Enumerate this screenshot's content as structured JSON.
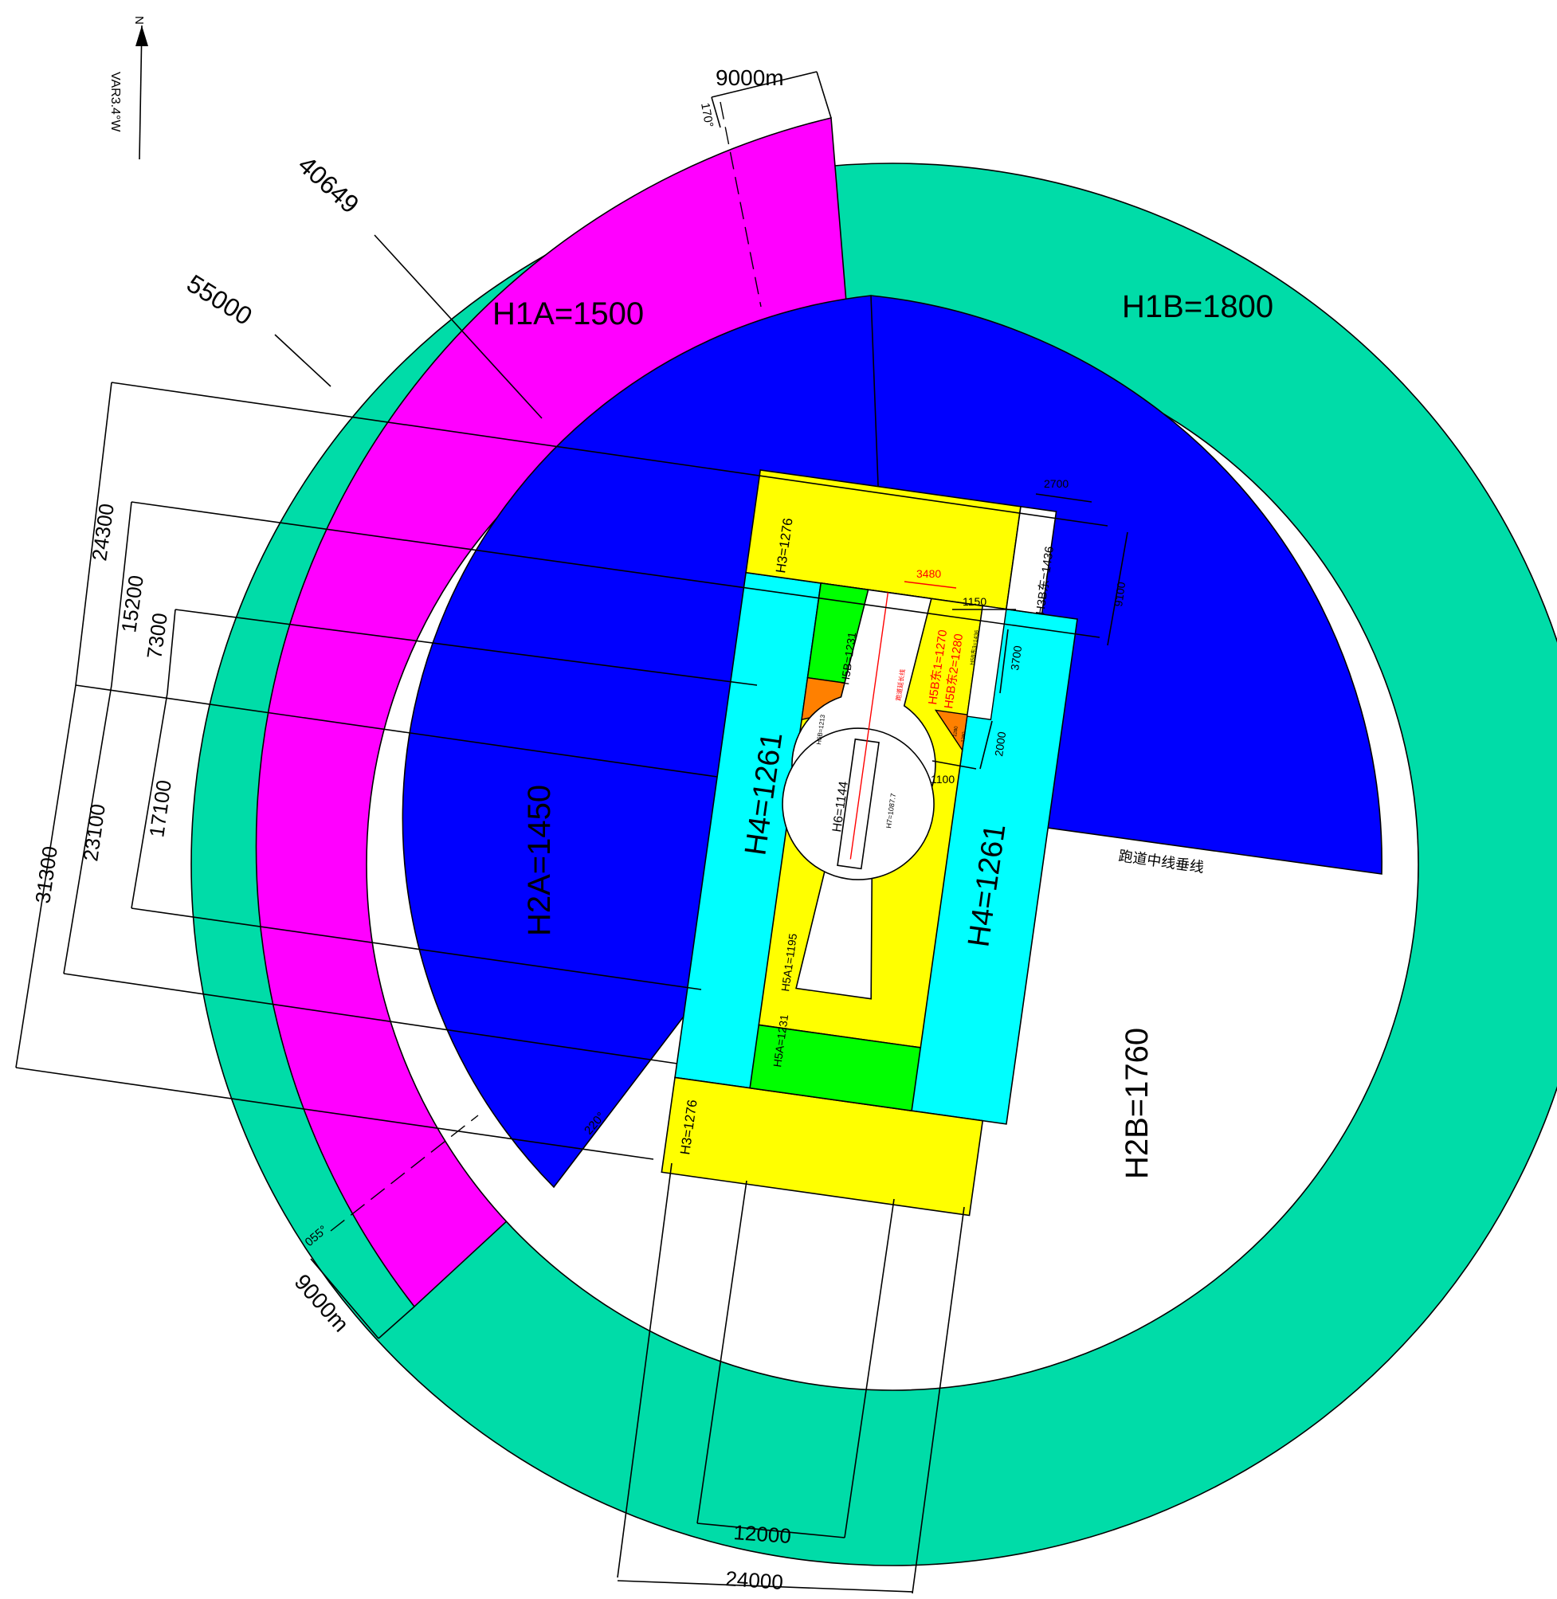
{
  "north": {
    "n_label": "N",
    "var_label": "VAR3.4°W"
  },
  "zones": {
    "h1a": "H1A=1500",
    "h1b": "H1B=1800",
    "h2a": "H2A=1450",
    "h2b": "H2B=1760",
    "h3_top": "H3=1276",
    "h3_bottom": "H3=1276",
    "h3b": "H3B东=1436",
    "h4_left": "H4=1261",
    "h4_right": "H4=1261",
    "h5b": "H5B=1231",
    "h5a": "H5A=1231",
    "h5a1": "H5A1=1195",
    "h6": "H6=1144",
    "h7": "H7=1087.7",
    "h6b": "H6B=1213",
    "h5b_e1": "H5B东1=1270",
    "h5b_e2": "H5B东2=1280",
    "h5b_small": "H5B东3=1436",
    "tiny_a": "1280",
    "tiny_b": "1280"
  },
  "dimensions": {
    "r_outer": "55000",
    "r_inner": "40649",
    "arc_top": "9000m",
    "arc_bottom": "9000m",
    "bearing_170": "170°",
    "bearing_055": "055°",
    "bearing_220": "220°",
    "d24300": "24300",
    "d15200": "15200",
    "d7300": "7300",
    "d17100": "17100",
    "d23100": "23100",
    "d31300": "31300",
    "d12000": "12000",
    "d24000": "24000",
    "d2700": "2700",
    "d9100": "9100",
    "d3480": "3480",
    "d1150": "1150",
    "d3700": "3700",
    "d2000": "2000",
    "d1100": "1100"
  },
  "labels": {
    "runway_perp": "跑道中线垂线",
    "runway_center": "跑道延长线"
  },
  "colors": {
    "magenta": "#ff00ff",
    "teal": "#00dca8",
    "blue": "#0000ff",
    "yellow": "#ffff00",
    "cyan": "#00ffff",
    "green": "#00ff00",
    "orange": "#ff8000",
    "white": "#ffffff"
  }
}
